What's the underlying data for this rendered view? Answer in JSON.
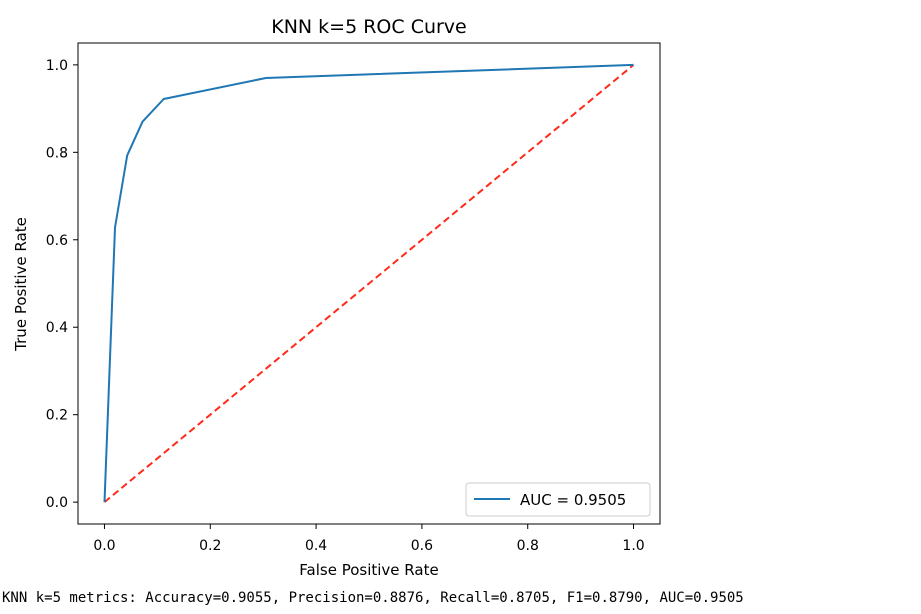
{
  "chart_data": {
    "type": "line",
    "title": "KNN k=5 ROC Curve",
    "xlabel": "False Positive Rate",
    "ylabel": "True Positive Rate",
    "xlim": [
      -0.05,
      1.05
    ],
    "ylim": [
      -0.05,
      1.05
    ],
    "xticks": [
      0.0,
      0.2,
      0.4,
      0.6,
      0.8,
      1.0
    ],
    "yticks": [
      0.0,
      0.2,
      0.4,
      0.6,
      0.8,
      1.0
    ],
    "xtick_labels": [
      "0.0",
      "0.2",
      "0.4",
      "0.6",
      "0.8",
      "1.0"
    ],
    "ytick_labels": [
      "0.0",
      "0.2",
      "0.4",
      "0.6",
      "0.8",
      "1.0"
    ],
    "grid": false,
    "legend_position": "lower-right",
    "series": [
      {
        "name": "AUC = 0.9505",
        "color": "#1f77b4",
        "style": "solid",
        "x": [
          0.0,
          0.02,
          0.043,
          0.072,
          0.112,
          0.305,
          1.0
        ],
        "y": [
          0.0,
          0.628,
          0.793,
          0.87,
          0.922,
          0.97,
          1.0
        ]
      },
      {
        "name": "",
        "color": "#ff2a1a",
        "style": "dashed",
        "x": [
          0.0,
          1.0
        ],
        "y": [
          0.0,
          1.0
        ]
      }
    ]
  },
  "metrics_text": "KNN k=5 metrics: Accuracy=0.9055, Precision=0.8876, Recall=0.8705, F1=0.8790, AUC=0.9505"
}
